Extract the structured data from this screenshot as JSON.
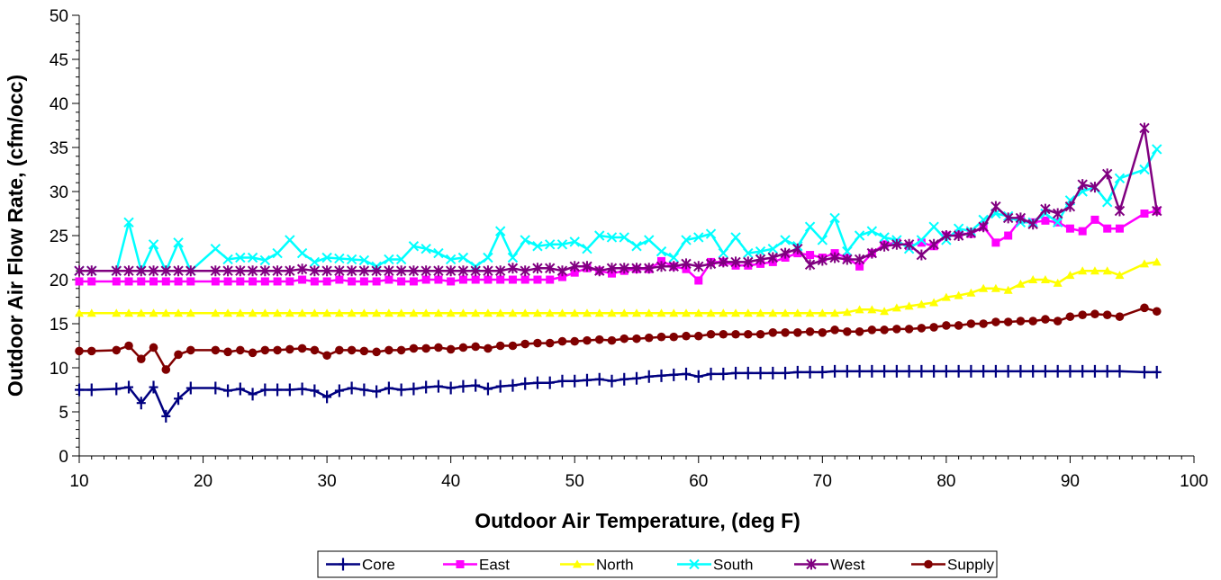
{
  "chart_data": {
    "type": "line",
    "title": "",
    "xlabel": "Outdoor Air Temperature, (deg F)",
    "ylabel": "Outdoor Air Flow Rate, (cfm/occ)",
    "xlim": [
      10,
      100
    ],
    "ylim": [
      0,
      50
    ],
    "xticks": [
      "10",
      "20",
      "30",
      "40",
      "50",
      "60",
      "70",
      "80",
      "90",
      "100"
    ],
    "yticks": [
      "0",
      "5",
      "10",
      "15",
      "20",
      "25",
      "30",
      "35",
      "40",
      "45",
      "50"
    ],
    "grid": false,
    "legend_position": "bottom",
    "x": [
      10,
      11,
      13,
      14,
      15,
      16,
      17,
      18,
      19,
      21,
      22,
      23,
      24,
      25,
      26,
      27,
      28,
      29,
      30,
      31,
      32,
      33,
      34,
      35,
      36,
      37,
      38,
      39,
      40,
      41,
      42,
      43,
      44,
      45,
      46,
      47,
      48,
      49,
      50,
      51,
      52,
      53,
      54,
      55,
      56,
      57,
      58,
      59,
      60,
      61,
      62,
      63,
      64,
      65,
      66,
      67,
      68,
      69,
      70,
      71,
      72,
      73,
      74,
      75,
      76,
      77,
      78,
      79,
      80,
      81,
      82,
      83,
      84,
      85,
      86,
      87,
      88,
      89,
      90,
      91,
      92,
      93,
      94,
      96,
      97
    ],
    "series": [
      {
        "name": "Core",
        "color": "#000080",
        "marker": "plus",
        "values": [
          7.5,
          7.5,
          7.6,
          7.8,
          6.0,
          7.8,
          4.5,
          6.5,
          7.7,
          7.7,
          7.4,
          7.6,
          7.0,
          7.5,
          7.5,
          7.5,
          7.6,
          7.4,
          6.7,
          7.4,
          7.7,
          7.5,
          7.3,
          7.7,
          7.5,
          7.6,
          7.8,
          7.9,
          7.7,
          7.9,
          8.0,
          7.6,
          7.9,
          8.0,
          8.2,
          8.3,
          8.3,
          8.5,
          8.5,
          8.6,
          8.7,
          8.5,
          8.7,
          8.8,
          9.0,
          9.1,
          9.2,
          9.3,
          9.0,
          9.3,
          9.3,
          9.4,
          9.4,
          9.4,
          9.4,
          9.4,
          9.5,
          9.5,
          9.5,
          9.6,
          9.6,
          9.6,
          9.6,
          9.6,
          9.6,
          9.6,
          9.6,
          9.6,
          9.6,
          9.6,
          9.6,
          9.6,
          9.6,
          9.6,
          9.6,
          9.6,
          9.6,
          9.6,
          9.6,
          9.6,
          9.6,
          9.6,
          9.6,
          9.5,
          9.5
        ]
      },
      {
        "name": "East",
        "color": "#ff00ff",
        "marker": "square",
        "values": [
          19.8,
          19.8,
          19.8,
          19.8,
          19.8,
          19.8,
          19.8,
          19.8,
          19.8,
          19.8,
          19.8,
          19.8,
          19.8,
          19.8,
          19.8,
          19.8,
          20.0,
          19.8,
          19.8,
          20.0,
          19.8,
          19.8,
          19.8,
          20.0,
          19.8,
          19.8,
          20.0,
          20.0,
          19.8,
          20.0,
          20.0,
          20.0,
          20.0,
          20.0,
          20.0,
          20.0,
          20.0,
          20.3,
          20.8,
          21.3,
          21.0,
          20.7,
          21.0,
          21.2,
          21.2,
          22.1,
          21.5,
          21.2,
          19.9,
          22.0,
          22.0,
          21.6,
          21.6,
          21.8,
          22.0,
          22.5,
          23.0,
          22.8,
          22.5,
          23.0,
          22.5,
          21.5,
          23.0,
          24.0,
          24.2,
          23.8,
          24.2,
          23.8,
          25.0,
          25.2,
          25.2,
          26.0,
          24.2,
          25.0,
          26.8,
          26.5,
          26.7,
          26.5,
          25.8,
          25.5,
          26.8,
          25.8,
          25.8,
          27.5,
          27.8
        ]
      },
      {
        "name": "North",
        "color": "#ffff00",
        "marker": "triangle",
        "values": [
          16.2,
          16.2,
          16.2,
          16.2,
          16.2,
          16.2,
          16.2,
          16.2,
          16.2,
          16.2,
          16.2,
          16.2,
          16.2,
          16.2,
          16.2,
          16.2,
          16.2,
          16.2,
          16.2,
          16.2,
          16.2,
          16.2,
          16.2,
          16.2,
          16.2,
          16.2,
          16.2,
          16.2,
          16.2,
          16.2,
          16.2,
          16.2,
          16.2,
          16.2,
          16.2,
          16.2,
          16.2,
          16.2,
          16.2,
          16.2,
          16.2,
          16.2,
          16.2,
          16.2,
          16.2,
          16.2,
          16.2,
          16.2,
          16.2,
          16.2,
          16.2,
          16.2,
          16.2,
          16.2,
          16.2,
          16.2,
          16.2,
          16.2,
          16.2,
          16.2,
          16.3,
          16.6,
          16.6,
          16.4,
          16.8,
          17.0,
          17.2,
          17.4,
          18.0,
          18.2,
          18.5,
          19.0,
          19.0,
          18.8,
          19.5,
          20.0,
          20.0,
          19.6,
          20.5,
          21.0,
          21.0,
          21.0,
          20.5,
          21.8,
          22.0
        ]
      },
      {
        "name": "South",
        "color": "#00ffff",
        "marker": "x",
        "values": [
          21.0,
          21.0,
          21.0,
          26.5,
          21.0,
          24.0,
          21.0,
          24.2,
          21.0,
          23.5,
          22.3,
          22.5,
          22.5,
          22.2,
          23.0,
          24.5,
          23.0,
          22.0,
          22.5,
          22.4,
          22.3,
          22.2,
          21.5,
          22.3,
          22.3,
          23.8,
          23.5,
          23.0,
          22.3,
          22.5,
          21.5,
          22.5,
          25.5,
          22.5,
          24.5,
          23.8,
          24.0,
          24.0,
          24.3,
          23.5,
          25.0,
          24.8,
          24.8,
          23.8,
          24.5,
          23.2,
          22.5,
          24.5,
          24.8,
          25.2,
          23.0,
          24.8,
          23.0,
          23.2,
          23.5,
          24.5,
          23.8,
          26.0,
          24.5,
          27.0,
          23.2,
          25.0,
          25.5,
          24.8,
          24.5,
          23.5,
          24.5,
          26.0,
          24.5,
          25.8,
          25.5,
          26.8,
          27.5,
          27.2,
          26.5,
          26.5,
          27.5,
          26.5,
          29.0,
          30.0,
          30.5,
          28.8,
          31.5,
          32.5,
          34.8
        ]
      },
      {
        "name": "West",
        "color": "#800080",
        "marker": "star",
        "values": [
          21.0,
          21.0,
          21.0,
          21.0,
          21.0,
          21.0,
          21.0,
          21.0,
          21.0,
          21.0,
          21.0,
          21.0,
          21.0,
          21.0,
          21.0,
          21.0,
          21.2,
          21.0,
          21.0,
          21.0,
          21.0,
          21.0,
          21.0,
          21.0,
          21.0,
          21.0,
          21.0,
          21.0,
          21.0,
          21.0,
          21.0,
          21.0,
          21.0,
          21.3,
          21.0,
          21.3,
          21.3,
          21.0,
          21.5,
          21.5,
          21.0,
          21.3,
          21.3,
          21.3,
          21.3,
          21.5,
          21.5,
          21.8,
          21.5,
          21.8,
          22.0,
          22.0,
          22.0,
          22.3,
          22.5,
          23.0,
          23.5,
          21.7,
          22.2,
          22.5,
          22.3,
          22.3,
          23.0,
          23.8,
          24.0,
          24.0,
          22.8,
          24.0,
          25.0,
          25.0,
          25.3,
          26.0,
          28.3,
          27.0,
          27.0,
          26.3,
          28.0,
          27.5,
          28.3,
          30.8,
          30.5,
          32.0,
          27.8,
          37.2,
          27.8
        ]
      },
      {
        "name": "Supply",
        "color": "#800000",
        "marker": "circle",
        "values": [
          11.9,
          11.9,
          12.0,
          12.5,
          11.0,
          12.3,
          9.8,
          11.5,
          12.0,
          12.0,
          11.8,
          12.0,
          11.7,
          12.0,
          12.0,
          12.1,
          12.2,
          12.0,
          11.4,
          12.0,
          12.0,
          11.9,
          11.8,
          12.0,
          12.0,
          12.2,
          12.2,
          12.3,
          12.1,
          12.3,
          12.4,
          12.2,
          12.5,
          12.5,
          12.7,
          12.8,
          12.8,
          13.0,
          13.0,
          13.1,
          13.2,
          13.1,
          13.3,
          13.3,
          13.4,
          13.5,
          13.5,
          13.6,
          13.6,
          13.8,
          13.8,
          13.8,
          13.8,
          13.8,
          14.0,
          14.0,
          14.0,
          14.1,
          14.0,
          14.3,
          14.1,
          14.1,
          14.3,
          14.3,
          14.4,
          14.4,
          14.5,
          14.6,
          14.8,
          14.8,
          15.0,
          15.0,
          15.2,
          15.2,
          15.3,
          15.3,
          15.5,
          15.3,
          15.8,
          16.0,
          16.1,
          16.0,
          15.8,
          16.8,
          16.4
        ]
      }
    ]
  }
}
